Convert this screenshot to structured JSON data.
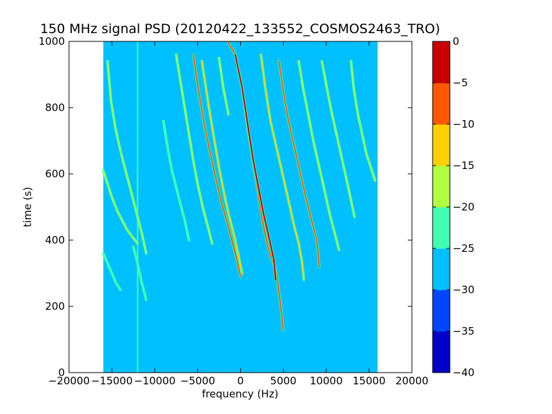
{
  "chart_data": {
    "type": "heatmap",
    "title": "150 MHz signal PSD (20120422_133552_COSMOS2463_TRO)",
    "xlabel": "frequency (Hz)",
    "ylabel": "time (s)",
    "xlim": [
      -20000,
      20000
    ],
    "ylim": [
      0,
      1000
    ],
    "x_ticks": [
      -20000,
      -15000,
      -10000,
      -5000,
      0,
      5000,
      10000,
      15000,
      20000
    ],
    "y_ticks": [
      0,
      200,
      400,
      600,
      800,
      1000
    ],
    "grid": false,
    "data_extent_x": [
      -16000,
      16000
    ],
    "background_level": -27.5,
    "colorbar": {
      "levels": [
        -40,
        -35,
        -30,
        -25,
        -20,
        -15,
        -10,
        -5,
        0
      ],
      "tick_labels": [
        "0",
        "−5",
        "−10",
        "−15",
        "−20",
        "−25",
        "−30",
        "−35",
        "−40"
      ],
      "colors": [
        "#0000c8",
        "#0046ff",
        "#00c0ff",
        "#40ffb0",
        "#b0ff40",
        "#ffd000",
        "#ff5800",
        "#c80000"
      ]
    },
    "constant_lines": [
      {
        "x": -12000,
        "t_start": 0,
        "t_end": 1000,
        "level": -22
      }
    ],
    "traces": [
      {
        "points": [
          [
            -1500,
            1000
          ],
          [
            -600,
            960
          ],
          [
            200,
            860
          ],
          [
            700,
            760
          ],
          [
            1200,
            680
          ],
          [
            1700,
            600
          ],
          [
            2200,
            520
          ],
          [
            2700,
            440
          ],
          [
            3200,
            380
          ],
          [
            3700,
            340
          ],
          [
            4200,
            300
          ],
          [
            4700,
            200
          ],
          [
            5000,
            130
          ]
        ],
        "level": -8
      },
      {
        "points": [
          [
            -600,
            960
          ],
          [
            200,
            860
          ],
          [
            900,
            740
          ],
          [
            1500,
            640
          ],
          [
            2100,
            560
          ],
          [
            2700,
            480
          ],
          [
            3400,
            400
          ],
          [
            3900,
            340
          ],
          [
            4100,
            280
          ]
        ],
        "level": -3
      },
      {
        "points": [
          [
            -5500,
            960
          ],
          [
            -5000,
            870
          ],
          [
            -4300,
            760
          ],
          [
            -3600,
            670
          ],
          [
            -2900,
            590
          ],
          [
            -2200,
            510
          ],
          [
            -1500,
            450
          ],
          [
            -900,
            390
          ],
          [
            -400,
            340
          ],
          [
            0,
            290
          ]
        ],
        "level": -10
      },
      {
        "points": [
          [
            -4500,
            940
          ],
          [
            -3800,
            820
          ],
          [
            -3100,
            710
          ],
          [
            -2500,
            620
          ],
          [
            -1900,
            540
          ],
          [
            -1300,
            470
          ],
          [
            -700,
            410
          ],
          [
            -200,
            350
          ],
          [
            200,
            300
          ]
        ],
        "level": -14
      },
      {
        "points": [
          [
            2400,
            960
          ],
          [
            2900,
            860
          ],
          [
            3500,
            760
          ],
          [
            4200,
            680
          ],
          [
            4900,
            600
          ],
          [
            5600,
            520
          ],
          [
            6200,
            450
          ],
          [
            6800,
            390
          ],
          [
            7200,
            330
          ],
          [
            7400,
            280
          ]
        ],
        "level": -12
      },
      {
        "points": [
          [
            4500,
            940
          ],
          [
            5000,
            850
          ],
          [
            5600,
            760
          ],
          [
            6300,
            680
          ],
          [
            7000,
            600
          ],
          [
            7700,
            520
          ],
          [
            8300,
            460
          ],
          [
            8900,
            400
          ],
          [
            9200,
            320
          ]
        ],
        "level": -8
      },
      {
        "points": [
          [
            6800,
            940
          ],
          [
            7300,
            860
          ],
          [
            7900,
            780
          ],
          [
            8500,
            700
          ],
          [
            9200,
            620
          ],
          [
            9800,
            550
          ],
          [
            10400,
            480
          ],
          [
            11000,
            420
          ],
          [
            11500,
            370
          ]
        ],
        "level": -18
      },
      {
        "points": [
          [
            9500,
            940
          ],
          [
            10000,
            870
          ],
          [
            10600,
            790
          ],
          [
            11200,
            720
          ],
          [
            11800,
            650
          ],
          [
            12400,
            580
          ],
          [
            12900,
            520
          ],
          [
            13300,
            470
          ]
        ],
        "level": -20
      },
      {
        "points": [
          [
            12900,
            940
          ],
          [
            13200,
            860
          ],
          [
            13700,
            780
          ],
          [
            14200,
            720
          ],
          [
            14700,
            660
          ],
          [
            15200,
            620
          ],
          [
            15700,
            580
          ]
        ],
        "level": -20
      },
      {
        "points": [
          [
            -7500,
            960
          ],
          [
            -7000,
            880
          ],
          [
            -6500,
            800
          ],
          [
            -6000,
            720
          ],
          [
            -5500,
            640
          ],
          [
            -5000,
            570
          ],
          [
            -4400,
            500
          ],
          [
            -3800,
            440
          ],
          [
            -3300,
            390
          ]
        ],
        "level": -16
      },
      {
        "points": [
          [
            -9000,
            760
          ],
          [
            -8500,
            680
          ],
          [
            -8000,
            610
          ],
          [
            -7500,
            560
          ],
          [
            -7000,
            510
          ],
          [
            -6500,
            460
          ],
          [
            -6000,
            400
          ]
        ],
        "level": -22
      },
      {
        "points": [
          [
            -15500,
            940
          ],
          [
            -15100,
            820
          ],
          [
            -14600,
            740
          ],
          [
            -14000,
            670
          ],
          [
            -13400,
            610
          ],
          [
            -12800,
            550
          ],
          [
            -12100,
            480
          ],
          [
            -11500,
            420
          ],
          [
            -11000,
            360
          ]
        ],
        "level": -20
      },
      {
        "points": [
          [
            -16000,
            610
          ],
          [
            -15500,
            570
          ],
          [
            -15000,
            530
          ],
          [
            -14400,
            490
          ],
          [
            -13800,
            460
          ],
          [
            -13200,
            430
          ],
          [
            -12600,
            410
          ],
          [
            -12000,
            390
          ]
        ],
        "level": -18
      },
      {
        "points": [
          [
            -16000,
            360
          ],
          [
            -15500,
            330
          ],
          [
            -15000,
            300
          ],
          [
            -14500,
            270
          ],
          [
            -14000,
            250
          ]
        ],
        "level": -22
      },
      {
        "points": [
          [
            -2500,
            950
          ],
          [
            -2000,
            860
          ],
          [
            -1400,
            780
          ]
        ],
        "level": -18
      },
      {
        "points": [
          [
            -12500,
            380
          ],
          [
            -12000,
            330
          ],
          [
            -11500,
            270
          ],
          [
            -11000,
            220
          ]
        ],
        "level": -24
      }
    ]
  }
}
